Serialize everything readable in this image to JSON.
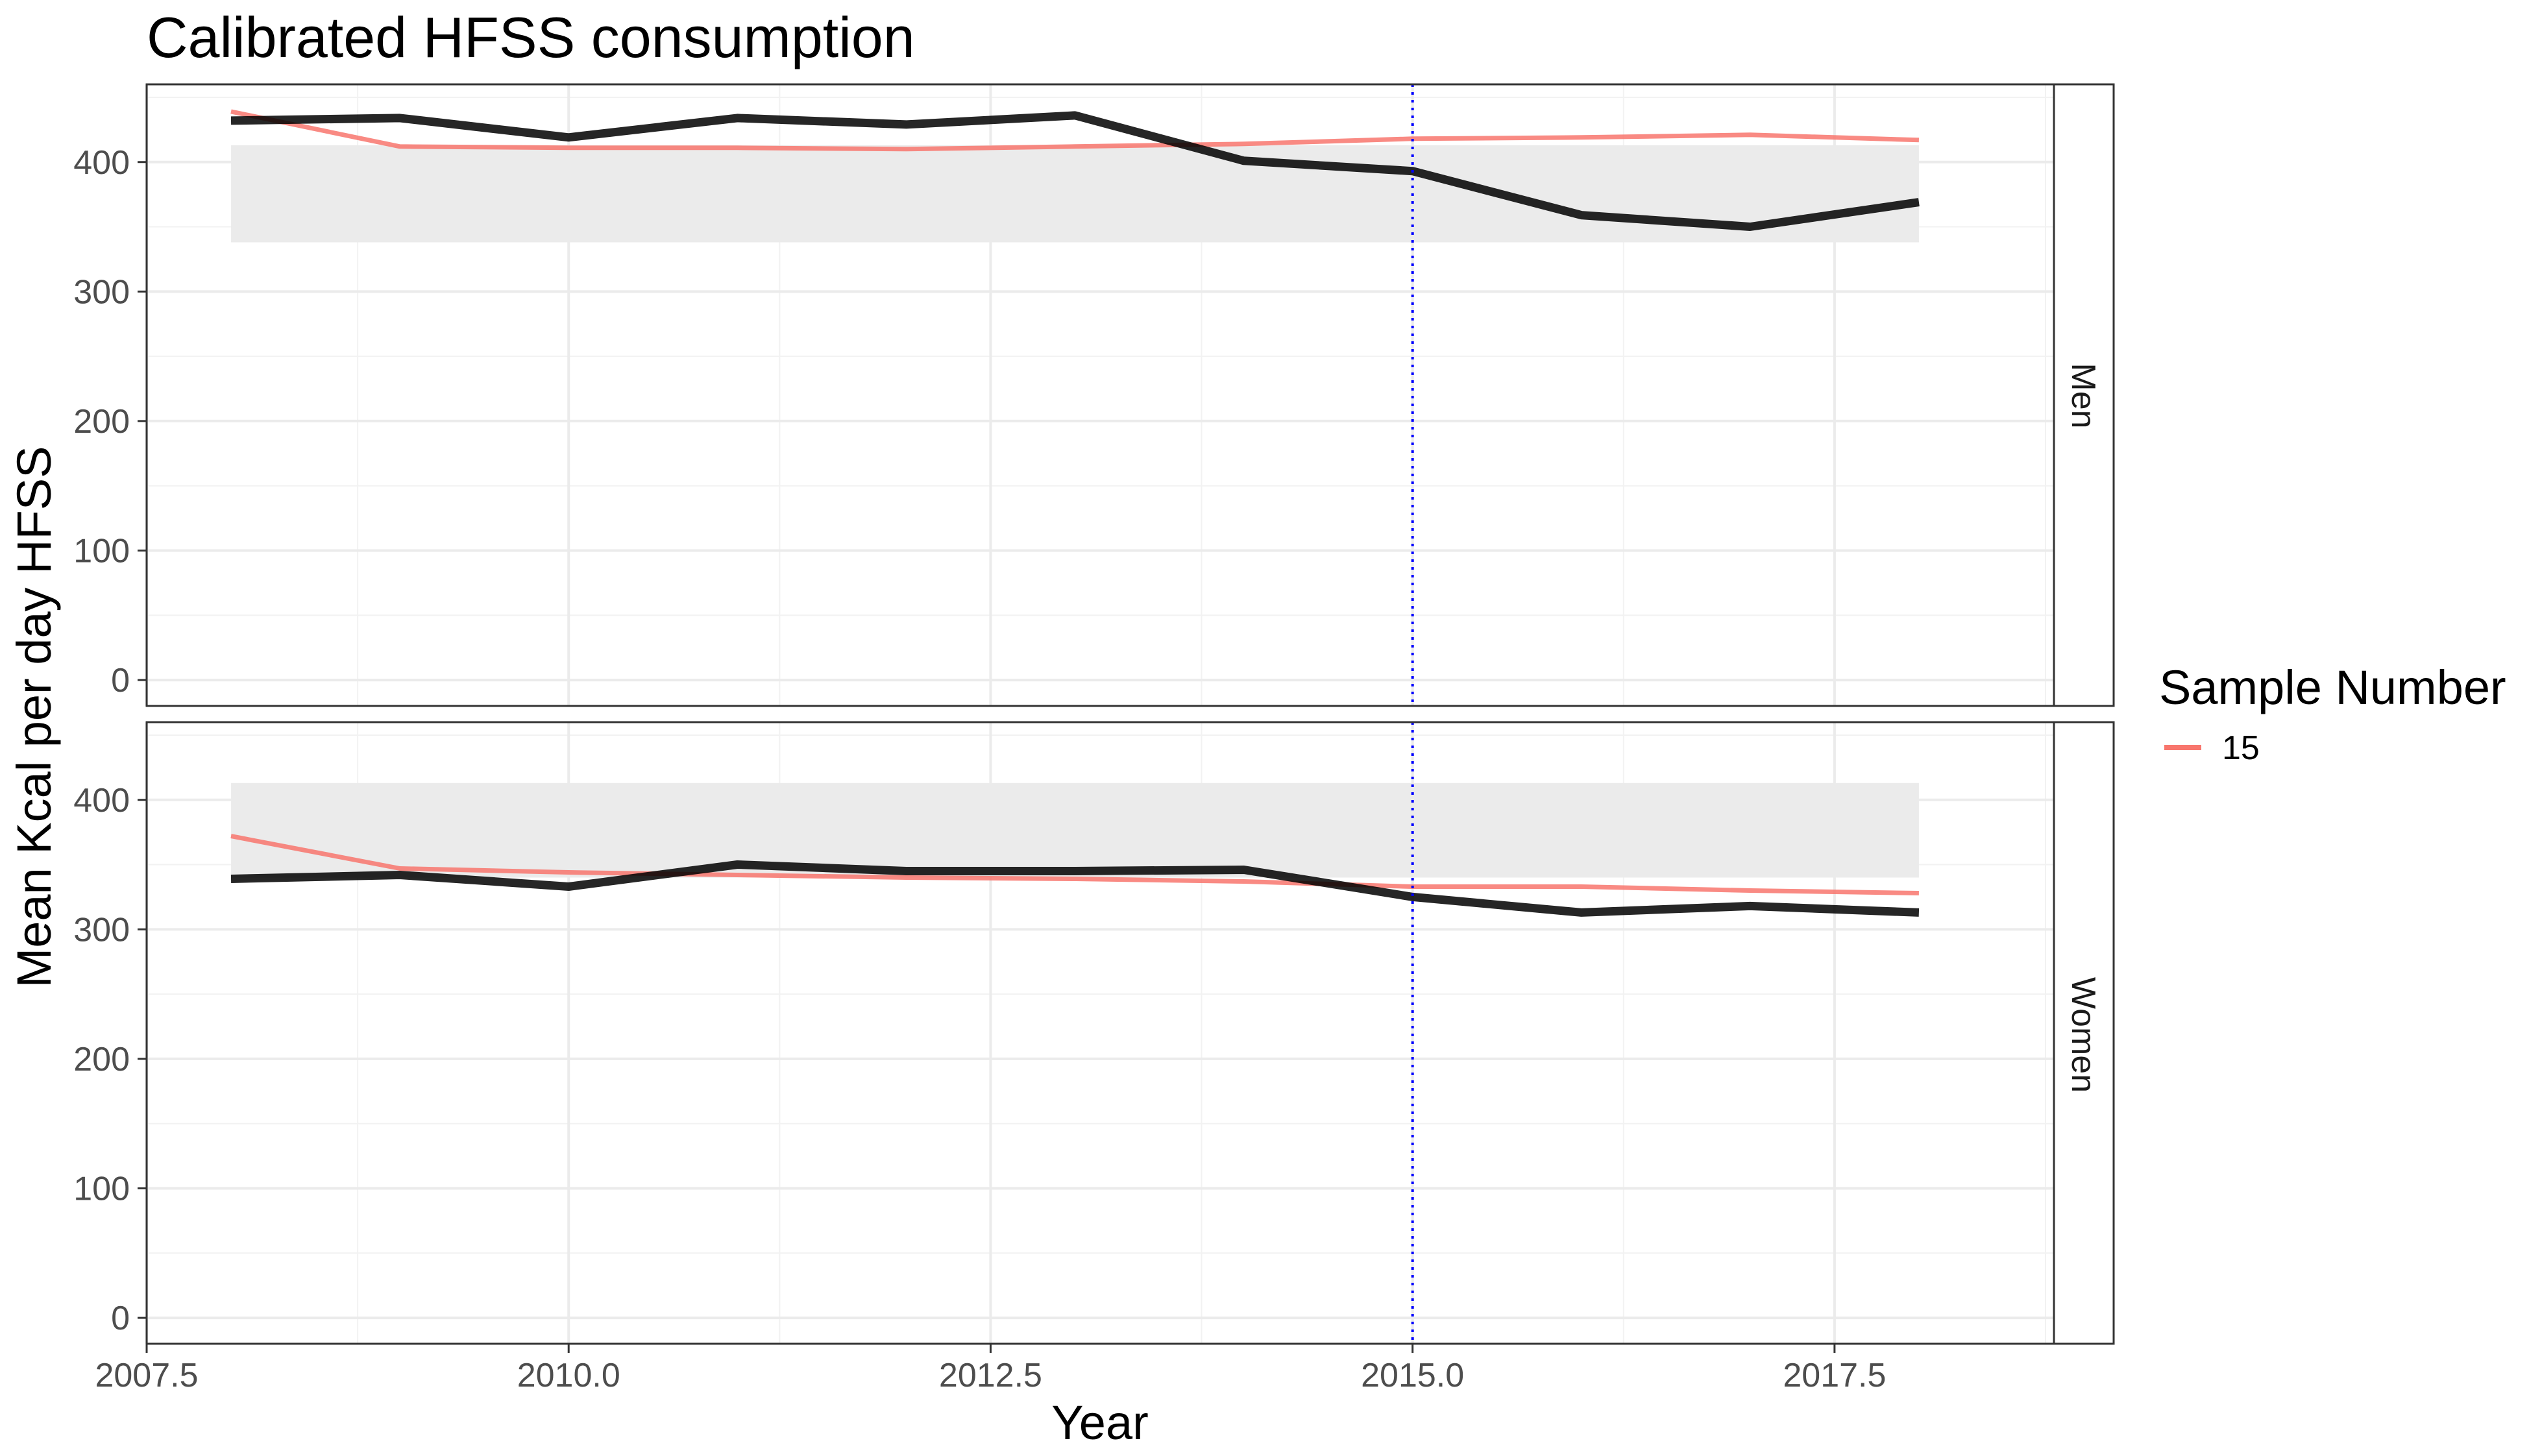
{
  "chart_data": {
    "type": "line",
    "title": "Calibrated HFSS consumption",
    "xlabel": "Year",
    "ylabel": "Mean Kcal per day HFSS",
    "xlim": [
      2007.5,
      2018.8
    ],
    "ylim": [
      -20,
      460
    ],
    "x_ticks": [
      2007.5,
      2010.0,
      2012.5,
      2015.0,
      2017.5
    ],
    "x_tick_labels": [
      "2007.5",
      "2010.0",
      "2012.5",
      "2015.0",
      "2017.5"
    ],
    "y_ticks": [
      0,
      100,
      200,
      300,
      400
    ],
    "y_tick_labels": [
      "0",
      "100",
      "200",
      "300",
      "400"
    ],
    "grid": true,
    "reference_line": {
      "x": 2015,
      "color": "#0000ff",
      "style": "dotted"
    },
    "legend": {
      "title": "Sample Number",
      "position": "right",
      "entries": [
        {
          "label": "15",
          "color": "#f8766d"
        }
      ]
    },
    "panels": [
      {
        "strip": "Men",
        "band": {
          "x": [
            2008,
            2018
          ],
          "y": [
            338,
            413
          ],
          "color": "#ebebeb"
        },
        "series": [
          {
            "legend": "15",
            "color": "#f8766d",
            "x": [
              2008,
              2009,
              2010,
              2011,
              2012,
              2013,
              2014,
              2015,
              2016,
              2017,
              2018
            ],
            "values": [
              439,
              412,
              411,
              411,
              410,
              412,
              414,
              418,
              419,
              421,
              417
            ]
          },
          {
            "legend": "",
            "color": "#000000",
            "x": [
              2008,
              2009,
              2010,
              2011,
              2012,
              2013,
              2014,
              2015,
              2016,
              2017,
              2018
            ],
            "values": [
              432,
              434,
              419,
              434,
              429,
              436,
              401,
              393,
              359,
              350,
              369
            ]
          }
        ]
      },
      {
        "strip": "Women",
        "band": {
          "x": [
            2008,
            2018
          ],
          "y": [
            340,
            413
          ],
          "color": "#ebebeb"
        },
        "series": [
          {
            "legend": "15",
            "color": "#f8766d",
            "x": [
              2008,
              2009,
              2010,
              2011,
              2012,
              2013,
              2014,
              2015,
              2016,
              2017,
              2018
            ],
            "values": [
              372,
              347,
              344,
              342,
              340,
              339,
              337,
              333,
              333,
              330,
              328
            ]
          },
          {
            "legend": "",
            "color": "#000000",
            "x": [
              2008,
              2009,
              2010,
              2011,
              2012,
              2013,
              2014,
              2015,
              2016,
              2017,
              2018
            ],
            "values": [
              339,
              342,
              333,
              350,
              345,
              345,
              346,
              325,
              313,
              318,
              313
            ]
          }
        ]
      }
    ]
  }
}
